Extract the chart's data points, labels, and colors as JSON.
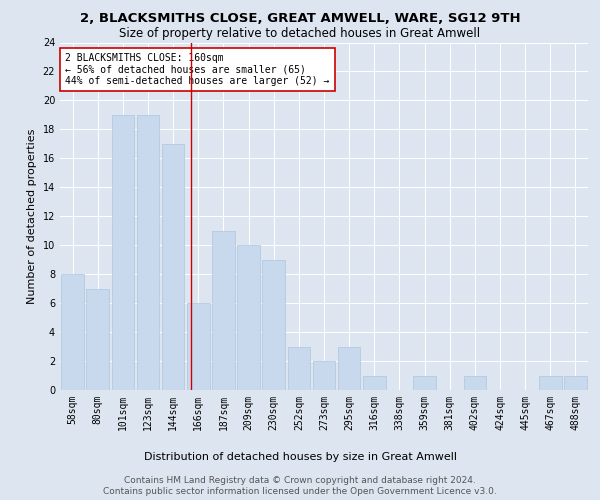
{
  "title": "2, BLACKSMITHS CLOSE, GREAT AMWELL, WARE, SG12 9TH",
  "subtitle": "Size of property relative to detached houses in Great Amwell",
  "xlabel": "Distribution of detached houses by size in Great Amwell",
  "ylabel": "Number of detached properties",
  "footer_line1": "Contains HM Land Registry data © Crown copyright and database right 2024.",
  "footer_line2": "Contains public sector information licensed under the Open Government Licence v3.0.",
  "categories": [
    "58sqm",
    "80sqm",
    "101sqm",
    "123sqm",
    "144sqm",
    "166sqm",
    "187sqm",
    "209sqm",
    "230sqm",
    "252sqm",
    "273sqm",
    "295sqm",
    "316sqm",
    "338sqm",
    "359sqm",
    "381sqm",
    "402sqm",
    "424sqm",
    "445sqm",
    "467sqm",
    "488sqm"
  ],
  "values": [
    8,
    7,
    19,
    19,
    17,
    6,
    11,
    10,
    9,
    3,
    2,
    3,
    1,
    0,
    1,
    0,
    1,
    0,
    0,
    1,
    1
  ],
  "bar_color": "#c8d9ee",
  "bar_edge_color": "#aec4de",
  "property_line_color": "#cc0000",
  "annotation_text": "2 BLACKSMITHS CLOSE: 160sqm\n← 56% of detached houses are smaller (65)\n44% of semi-detached houses are larger (52) →",
  "annotation_box_color": "#ffffff",
  "annotation_box_edge_color": "#cc0000",
  "ylim": [
    0,
    24
  ],
  "yticks": [
    0,
    2,
    4,
    6,
    8,
    10,
    12,
    14,
    16,
    18,
    20,
    22,
    24
  ],
  "background_color": "#dde6f0",
  "plot_background_color": "#dde6f0",
  "title_fontsize": 9.5,
  "subtitle_fontsize": 8.5,
  "axis_label_fontsize": 8,
  "tick_fontsize": 7,
  "annotation_fontsize": 7,
  "footer_fontsize": 6.5
}
